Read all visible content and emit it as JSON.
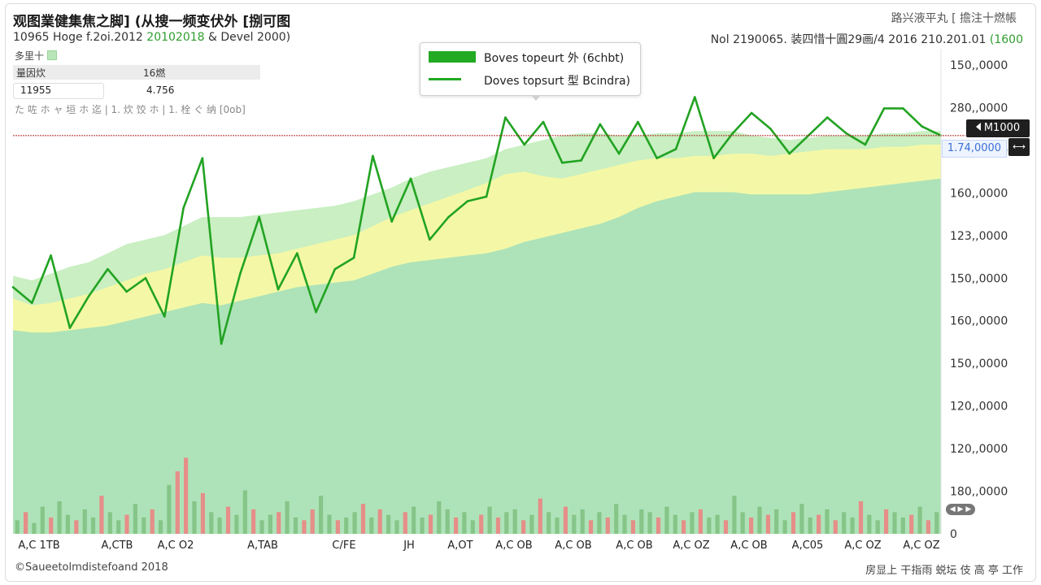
{
  "header": {
    "title": "观图業健集焦之脚] (从搜一频变伏外 [捌可图",
    "subtitle_a": "10965 Hoge f.2oi.2012 ",
    "subtitle_b": "20102018 ",
    "subtitle_c": "&  Devel 2000)",
    "right_title": "路兴液平丸 [ 擔注十燃帳",
    "right_sub_a": "Nol 2190065. 装四惜十圓29画/4 2016 210.201.01 ",
    "right_sub_b": "(1600"
  },
  "info": {
    "row1": "多里十",
    "row2_label": "量因炊",
    "row2_value": "16燃",
    "row3_label": "11955",
    "row3_value": "4.756",
    "row4": "た 咗 ホ ャ 垣 ホ 迄   |  1. 炊 饺 ホ   |  1. 栓 ぐ 纳 [0ob]"
  },
  "legend": {
    "item1": "Boves topeurt 外 (6chbt)",
    "item2": "Doves topsurt 型 Bcindra)"
  },
  "cursor": {
    "tag": "M1000",
    "value": "1.74,0000",
    "button": "⟷",
    "zoom": "◀ ▶ ▶"
  },
  "footer": {
    "left": "©Saueetolmdistefoand 2018",
    "right": "房显上 干指雨 蜕坛 伎 高 亭 工作"
  },
  "chart_data": {
    "type": "line",
    "title": "观图業健集焦之脚] (从搜一频变伏外 [捌可图",
    "x_tick_labels": [
      "A,C 1TB",
      "A,CTB",
      "A,C O2",
      "A,TAB",
      "C/FE",
      "JH",
      "A,OT",
      "A,C OB",
      "A,C OB",
      "A,C OB",
      "A,C OZ",
      "A,C OB",
      "A,C05",
      "A,C OZ",
      "A,C OZ"
    ],
    "y_tick_labels": [
      "150,,0000",
      "280,,0000",
      "1.74,0000",
      "160,,0000",
      "123,,0000",
      "150,,0000",
      "160,,0000",
      "150,,0000",
      "120,,0000",
      "120,,0000",
      "180,,0000",
      "0"
    ],
    "series": [
      {
        "name": "Boves topeurt 外 (6chbt)",
        "role": "price-line",
        "color": "#22a322",
        "values": [
          0.545,
          0.51,
          0.615,
          0.455,
          0.525,
          0.585,
          0.535,
          0.565,
          0.48,
          0.72,
          0.83,
          0.42,
          0.575,
          0.7,
          0.54,
          0.62,
          0.49,
          0.585,
          0.61,
          0.835,
          0.69,
          0.785,
          0.65,
          0.7,
          0.735,
          0.745,
          0.92,
          0.86,
          0.91,
          0.82,
          0.825,
          0.905,
          0.84,
          0.91,
          0.83,
          0.85,
          0.965,
          0.83,
          0.885,
          0.93,
          0.895,
          0.84,
          0.88,
          0.92,
          0.885,
          0.86,
          0.94,
          0.94,
          0.9,
          0.88
        ]
      },
      {
        "name": "upper-band",
        "role": "area",
        "color": "#c9efc2",
        "values": [
          0.57,
          0.56,
          0.575,
          0.59,
          0.6,
          0.62,
          0.64,
          0.65,
          0.66,
          0.68,
          0.7,
          0.7,
          0.7,
          0.705,
          0.71,
          0.715,
          0.72,
          0.725,
          0.735,
          0.75,
          0.765,
          0.785,
          0.8,
          0.81,
          0.82,
          0.83,
          0.85,
          0.86,
          0.87,
          0.88,
          0.885,
          0.885,
          0.88,
          0.88,
          0.885,
          0.885,
          0.89,
          0.89,
          0.89,
          0.88,
          0.875,
          0.87,
          0.875,
          0.88,
          0.88,
          0.88,
          0.885,
          0.885,
          0.89,
          0.89
        ]
      },
      {
        "name": "middle-band",
        "role": "area",
        "color": "#f4f8a6",
        "values": [
          0.52,
          0.505,
          0.51,
          0.52,
          0.53,
          0.545,
          0.56,
          0.575,
          0.585,
          0.6,
          0.615,
          0.61,
          0.61,
          0.615,
          0.62,
          0.63,
          0.64,
          0.65,
          0.66,
          0.68,
          0.7,
          0.715,
          0.73,
          0.745,
          0.76,
          0.775,
          0.795,
          0.8,
          0.79,
          0.785,
          0.795,
          0.805,
          0.815,
          0.825,
          0.83,
          0.83,
          0.835,
          0.835,
          0.84,
          0.84,
          0.835,
          0.84,
          0.845,
          0.85,
          0.85,
          0.85,
          0.855,
          0.855,
          0.86,
          0.86
        ]
      },
      {
        "name": "lower-band",
        "role": "area",
        "color": "#aee3b9",
        "values": [
          0.45,
          0.445,
          0.445,
          0.45,
          0.455,
          0.46,
          0.47,
          0.48,
          0.49,
          0.5,
          0.51,
          0.505,
          0.515,
          0.525,
          0.535,
          0.545,
          0.55,
          0.555,
          0.56,
          0.575,
          0.59,
          0.6,
          0.605,
          0.61,
          0.615,
          0.62,
          0.63,
          0.645,
          0.655,
          0.665,
          0.675,
          0.685,
          0.7,
          0.72,
          0.735,
          0.745,
          0.755,
          0.755,
          0.755,
          0.75,
          0.75,
          0.75,
          0.75,
          0.755,
          0.76,
          0.765,
          0.77,
          0.775,
          0.78,
          0.785
        ]
      }
    ],
    "volume": {
      "name": "volume",
      "colors": {
        "up": "#7fbf7f",
        "down": "#f07f7f"
      },
      "values": [
        0.05,
        0.08,
        0.04,
        0.1,
        0.06,
        0.12,
        0.07,
        0.05,
        0.09,
        0.06,
        0.14,
        0.08,
        0.05,
        0.07,
        0.11,
        0.06,
        0.09,
        0.05,
        0.18,
        0.23,
        0.28,
        0.12,
        0.15,
        0.08,
        0.06,
        0.1,
        0.07,
        0.16,
        0.09,
        0.05,
        0.07,
        0.08,
        0.12,
        0.06,
        0.05,
        0.09,
        0.14,
        0.07,
        0.05,
        0.06,
        0.08,
        0.11,
        0.06,
        0.09,
        0.07,
        0.05,
        0.08,
        0.1,
        0.06,
        0.07,
        0.12,
        0.09,
        0.06,
        0.08,
        0.05,
        0.07,
        0.1,
        0.06,
        0.08,
        0.09,
        0.05,
        0.07,
        0.13,
        0.08,
        0.06,
        0.1,
        0.07,
        0.09,
        0.05,
        0.08,
        0.06,
        0.11,
        0.07,
        0.05,
        0.09,
        0.08,
        0.06,
        0.1,
        0.07,
        0.05,
        0.08,
        0.09,
        0.06,
        0.07,
        0.05,
        0.14,
        0.08,
        0.06,
        0.1,
        0.07,
        0.09,
        0.05,
        0.08,
        0.11,
        0.06,
        0.07,
        0.09,
        0.05,
        0.08,
        0.06,
        0.12,
        0.07,
        0.05,
        0.09,
        0.08,
        0.06,
        0.07,
        0.1,
        0.05,
        0.08
      ],
      "down_flags": [
        0,
        1,
        0,
        0,
        1,
        0,
        0,
        1,
        0,
        0,
        1,
        0,
        0,
        1,
        0,
        0,
        1,
        0,
        0,
        1,
        1,
        0,
        1,
        0,
        0,
        1,
        0,
        0,
        1,
        0,
        0,
        1,
        0,
        0,
        1,
        1,
        0,
        0,
        1,
        0,
        0,
        1,
        0,
        1,
        0,
        0,
        1,
        0,
        0,
        1,
        0,
        0,
        1,
        0,
        0,
        1,
        0,
        1,
        0,
        0,
        1,
        0,
        1,
        0,
        0,
        1,
        0,
        0,
        1,
        0,
        1,
        0,
        0,
        1,
        0,
        0,
        1,
        0,
        0,
        1,
        0,
        1,
        0,
        0,
        1,
        0,
        0,
        1,
        0,
        1,
        0,
        0,
        1,
        0,
        0,
        1,
        0,
        1,
        0,
        0,
        1,
        0,
        0,
        1,
        0,
        0,
        1,
        0,
        1,
        0
      ]
    },
    "reference_line": {
      "name": "cursor-line",
      "value": 0.88,
      "color": "#b22222"
    },
    "ylim": [
      0,
      1
    ],
    "grid": false,
    "legend_position": "top-center"
  }
}
